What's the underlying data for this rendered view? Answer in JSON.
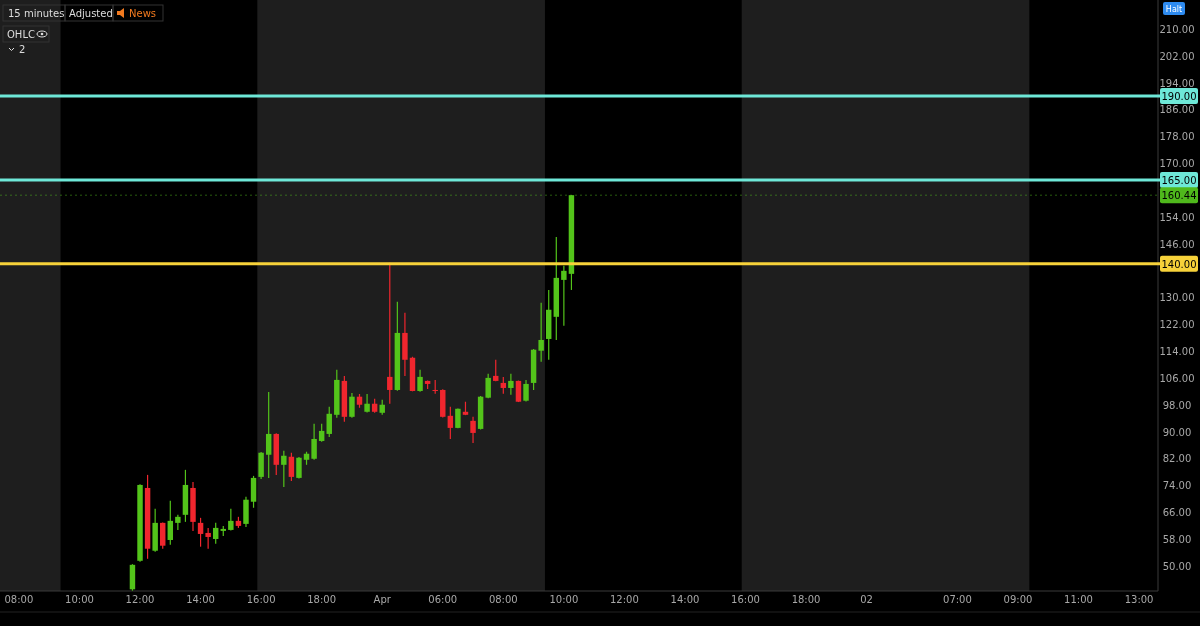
{
  "chart_data": {
    "type": "candlestick",
    "categories": [
      null,
      null,
      "08:00",
      null,
      null,
      null,
      null,
      null,
      null,
      null,
      "10:00",
      null,
      null,
      null,
      null,
      null,
      null,
      null,
      "12:00",
      null,
      null,
      null,
      null,
      null,
      null,
      null,
      "14:00",
      null,
      null,
      null,
      null,
      null,
      null,
      null,
      "16:00",
      null,
      null,
      null,
      null,
      null,
      null,
      null,
      "18:00",
      null,
      null,
      null,
      null,
      null,
      null,
      null,
      "Apr",
      null,
      null,
      null,
      null,
      null,
      null,
      null,
      "06:00",
      null,
      null,
      null,
      null,
      null,
      null,
      null,
      "08:00",
      null,
      null,
      null,
      null,
      null,
      null,
      null,
      "10:00",
      null,
      null,
      null,
      null,
      null,
      null,
      null,
      "12:00",
      null,
      null,
      null,
      null,
      null,
      null,
      null,
      "14:00",
      null,
      null,
      null,
      null,
      null,
      null,
      null,
      "16:00",
      null,
      null,
      null,
      null,
      null,
      null,
      null,
      "18:00",
      null,
      null,
      null,
      null,
      null,
      null,
      null,
      "02",
      null,
      null,
      null,
      null,
      null,
      null,
      null,
      null,
      null,
      null,
      null,
      "07:00",
      null,
      null,
      null,
      null,
      null,
      null,
      null,
      "09:00",
      null,
      null,
      null,
      null,
      null,
      null,
      null,
      "11:00",
      null,
      null,
      null,
      null,
      null,
      null,
      null,
      "13:00",
      null,
      null
    ],
    "ohlc": [
      null,
      null,
      null,
      null,
      null,
      null,
      null,
      null,
      null,
      null,
      null,
      null,
      null,
      null,
      null,
      null,
      null,
      [
        43,
        50.5,
        42.6,
        50.3
      ],
      [
        51.5,
        74.3,
        51.2,
        74.1
      ],
      [
        73.2,
        77.1,
        52.1,
        55.1
      ],
      [
        54.5,
        67.0,
        54.2,
        62.8
      ],
      [
        62.8,
        62.9,
        55.1,
        56.0
      ],
      [
        57.7,
        69.4,
        56.3,
        63.4
      ],
      [
        62.8,
        65.2,
        60.7,
        64.6
      ],
      [
        65.2,
        78.6,
        63.1,
        74.1
      ],
      [
        73.2,
        75.0,
        60.4,
        63.1
      ],
      [
        62.8,
        64.3,
        55.7,
        59.5
      ],
      [
        59.8,
        61.3,
        55.1,
        58.6
      ],
      [
        58.0,
        62.8,
        56.6,
        61.3
      ],
      [
        60.4,
        61.9,
        58.9,
        61.0
      ],
      [
        60.7,
        67.0,
        60.5,
        63.4
      ],
      [
        63.4,
        64.6,
        61.3,
        61.9
      ],
      [
        62.5,
        70.6,
        61.6,
        69.7
      ],
      [
        69.1,
        76.8,
        67.3,
        76.2
      ],
      [
        76.5,
        83.9,
        75.9,
        83.7
      ],
      [
        83.1,
        101.8,
        76.2,
        89.3
      ],
      [
        89.3,
        89.5,
        77.1,
        80.1
      ],
      [
        80.1,
        84.3,
        73.5,
        82.8
      ],
      [
        82.5,
        83.7,
        75.3,
        76.5
      ],
      [
        76.2,
        82.4,
        76.0,
        82.2
      ],
      [
        81.6,
        84.0,
        80.1,
        83.4
      ],
      [
        81.9,
        92.3,
        81.6,
        87.8
      ],
      [
        87.2,
        92.3,
        87.0,
        90.2
      ],
      [
        89.3,
        97.4,
        88.4,
        95.3
      ],
      [
        95.0,
        108.4,
        94.1,
        105.4
      ],
      [
        105.1,
        106.6,
        92.9,
        94.4
      ],
      [
        94.4,
        101.5,
        94.1,
        100.4
      ],
      [
        100.4,
        101.2,
        97.1,
        98.0
      ],
      [
        95.9,
        101.2,
        95.7,
        98.3
      ],
      [
        98.3,
        99.8,
        95.6,
        95.9
      ],
      [
        95.6,
        99.5,
        95.0,
        98.0
      ],
      [
        106.3,
        140.3,
        98.3,
        102.4
      ],
      [
        102.4,
        128.7,
        102.2,
        119.4
      ],
      [
        119.4,
        125.4,
        106.6,
        111.4
      ],
      [
        112.0,
        112.3,
        102.0,
        102.1
      ],
      [
        102.1,
        108.4,
        101.9,
        106.3
      ],
      [
        105.1,
        105.2,
        102.7,
        104.2
      ],
      [
        102.4,
        105.4,
        101.3,
        102.1
      ],
      [
        102.4,
        102.6,
        94.2,
        94.4
      ],
      [
        94.7,
        97.4,
        87.8,
        91.1
      ],
      [
        91.1,
        96.9,
        91.0,
        96.8
      ],
      [
        95.9,
        98.9,
        94.9,
        95.0
      ],
      [
        93.2,
        94.4,
        86.6,
        89.6
      ],
      [
        90.8,
        100.6,
        90.6,
        100.4
      ],
      [
        100.1,
        107.2,
        99.9,
        106.0
      ],
      [
        106.6,
        111.4,
        105.0,
        105.1
      ],
      [
        104.5,
        106.3,
        101.3,
        103.0
      ],
      [
        103.0,
        107.2,
        101.0,
        105.1
      ],
      [
        105.1,
        105.2,
        98.8,
        98.9
      ],
      [
        99.2,
        105.4,
        99.0,
        104.2
      ],
      [
        104.5,
        114.6,
        102.4,
        114.4
      ],
      [
        114.1,
        128.4,
        110.8,
        117.3
      ],
      [
        117.6,
        132.2,
        111.4,
        126.3
      ],
      [
        124.2,
        148.0,
        117.3,
        135.8
      ],
      [
        135.2,
        139.4,
        121.5,
        137.9
      ],
      [
        137.0,
        160.5,
        132.2,
        160.44
      ],
      null,
      null,
      null,
      null,
      null,
      null,
      null,
      null,
      null,
      null,
      null,
      null,
      null,
      null,
      null,
      null,
      null,
      null,
      null,
      null,
      null,
      null,
      null,
      null,
      null,
      null,
      null,
      null,
      null,
      null,
      null,
      null,
      null,
      null,
      null,
      null,
      null,
      null,
      null,
      null,
      null,
      null,
      null,
      null,
      null,
      null,
      null,
      null,
      null,
      null,
      null,
      null,
      null,
      null,
      null,
      null,
      null,
      null,
      null,
      null,
      null,
      null,
      null,
      null,
      null,
      null,
      null,
      null,
      null,
      null,
      null,
      null,
      null,
      null,
      null,
      null,
      null
    ],
    "colors": [
      null,
      null,
      null,
      null,
      null,
      null,
      null,
      null,
      null,
      null,
      null,
      null,
      null,
      null,
      null,
      null,
      null,
      "#53c41a",
      "#53c41a",
      "#f0262e",
      "#53c41a",
      "#f0262e",
      "#53c41a",
      "#53c41a",
      "#53c41a",
      "#f0262e",
      "#f0262e",
      "#f0262e",
      "#53c41a",
      "#53c41a",
      "#53c41a",
      "#f0262e",
      "#53c41a",
      "#53c41a",
      "#53c41a",
      "#53c41a",
      "#f0262e",
      "#53c41a",
      "#f0262e",
      "#53c41a",
      "#53c41a",
      "#53c41a",
      "#53c41a",
      "#53c41a",
      "#53c41a",
      "#f0262e",
      "#53c41a",
      "#f0262e",
      "#53c41a",
      "#f0262e",
      "#53c41a",
      "#f0262e",
      "#53c41a",
      "#f0262e",
      "#f0262e",
      "#53c41a",
      "#f0262e",
      "#f0262e",
      "#f0262e",
      "#f0262e",
      "#53c41a",
      "#f0262e",
      "#f0262e",
      "#53c41a",
      "#53c41a",
      "#f0262e",
      "#f0262e",
      "#53c41a",
      "#f0262e",
      "#53c41a",
      "#53c41a",
      "#53c41a",
      "#53c41a",
      "#53c41a",
      "#53c41a",
      "#53c41a",
      null,
      null,
      null,
      null,
      null,
      null,
      null,
      null,
      null,
      null,
      null,
      null,
      null,
      null,
      null,
      null,
      null,
      null,
      null,
      null,
      null,
      null,
      null,
      null,
      null,
      null,
      null,
      null,
      null,
      null,
      null,
      null,
      null,
      null,
      null,
      null,
      null,
      null,
      null,
      null,
      null,
      null,
      null,
      null,
      null,
      null,
      null,
      null,
      null,
      null,
      null,
      null,
      null,
      null,
      null,
      null,
      null,
      null,
      null,
      null,
      null,
      null,
      null,
      null,
      null,
      null,
      null,
      null,
      null,
      null,
      null,
      null,
      null,
      null,
      null,
      null,
      null
    ],
    "ylim": [
      42.5,
      218.6
    ],
    "yticks": [
      {
        "value": 50,
        "label": "50.00"
      },
      {
        "value": 58,
        "label": "58.00"
      },
      {
        "value": 66,
        "label": "66.00"
      },
      {
        "value": 74,
        "label": "74.00"
      },
      {
        "value": 82,
        "label": "82.00"
      },
      {
        "value": 90,
        "label": "90.00"
      },
      {
        "value": 98,
        "label": "98.00"
      },
      {
        "value": 106,
        "label": "106.00"
      },
      {
        "value": 114,
        "label": "114.00"
      },
      {
        "value": 122,
        "label": "122.00"
      },
      {
        "value": 130,
        "label": "130.00"
      },
      {
        "value": 146,
        "label": "146.00"
      },
      {
        "value": 154,
        "label": "154.00"
      },
      {
        "value": 170,
        "label": "170.00"
      },
      {
        "value": 178,
        "label": "178.00"
      },
      {
        "value": 186,
        "label": "186.00"
      },
      {
        "value": 194,
        "label": "194.00"
      },
      {
        "value": 202,
        "label": "202.00"
      },
      {
        "value": 210,
        "label": "210.00"
      }
    ],
    "ref_lines": [
      {
        "axis": "y",
        "value": 190,
        "label": "190.00",
        "color": "#6ee8d8"
      },
      {
        "axis": "y",
        "value": 165,
        "label": "165.00",
        "color": "#6ee8d8"
      },
      {
        "axis": "y",
        "value": 160.44,
        "label": "160.44",
        "color": "#4fb81c",
        "line_style": "dotted"
      },
      {
        "axis": "y",
        "value": 140,
        "label": "140.00",
        "color": "#f7d23a"
      }
    ],
    "annotations": [
      "15 minutes",
      "Adjusted",
      "News",
      "OHLC",
      "2",
      "Halt"
    ]
  }
}
